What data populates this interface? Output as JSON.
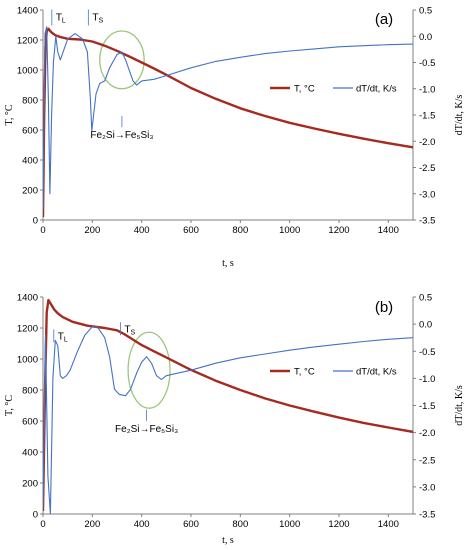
{
  "chart_data": [
    {
      "type": "line",
      "panel_label": "(a)",
      "xlabel": "t, s",
      "ylabel_left": "T, °C",
      "ylabel_right": "dT/dt, K/s",
      "xlim": [
        0,
        1500
      ],
      "ylim_left": [
        0,
        1400
      ],
      "ylim_right": [
        -3.5,
        0.5
      ],
      "x_ticks": [
        "0",
        "200",
        "400",
        "600",
        "800",
        "1000",
        "1200",
        "1400"
      ],
      "y_ticks_left": [
        "0",
        "200",
        "400",
        "600",
        "800",
        "1000",
        "1200",
        "1400"
      ],
      "y_ticks_right": [
        "-3.5",
        "-3.0",
        "-2.5",
        "-2.0",
        "-1.5",
        "-1.0",
        "-0.5",
        "0.0",
        "0.5"
      ],
      "colors": {
        "temperature": "#a52a1f",
        "rate": "#4472c4",
        "ellipse": "#9bc77a"
      },
      "legend_position": "right",
      "series": [
        {
          "name": "T, °C",
          "axis": "left",
          "points": [
            [
              0,
              20
            ],
            [
              5,
              700
            ],
            [
              10,
              1150
            ],
            [
              15,
              1255
            ],
            [
              22,
              1275
            ],
            [
              35,
              1250
            ],
            [
              50,
              1232
            ],
            [
              70,
              1220
            ],
            [
              100,
              1208
            ],
            [
              150,
              1203
            ],
            [
              200,
              1190
            ],
            [
              250,
              1162
            ],
            [
              300,
              1128
            ],
            [
              350,
              1090
            ],
            [
              400,
              1050
            ],
            [
              450,
              1010
            ],
            [
              500,
              968
            ],
            [
              600,
              880
            ],
            [
              700,
              808
            ],
            [
              800,
              745
            ],
            [
              900,
              693
            ],
            [
              1000,
              648
            ],
            [
              1100,
              610
            ],
            [
              1200,
              575
            ],
            [
              1300,
              542
            ],
            [
              1400,
              512
            ],
            [
              1500,
              485
            ]
          ]
        },
        {
          "name": "dT/dt, K/s",
          "axis": "right",
          "points": [
            [
              0,
              -3.3
            ],
            [
              8,
              0.05
            ],
            [
              15,
              0.18
            ],
            [
              22,
              -1.2
            ],
            [
              28,
              -3.0
            ],
            [
              35,
              -1.5
            ],
            [
              42,
              -0.5
            ],
            [
              52,
              0.0
            ],
            [
              60,
              -0.3
            ],
            [
              70,
              -0.45
            ],
            [
              85,
              -0.25
            ],
            [
              100,
              -0.05
            ],
            [
              130,
              0.05
            ],
            [
              160,
              -0.05
            ],
            [
              180,
              -0.3
            ],
            [
              192,
              -1.2
            ],
            [
              198,
              -1.8
            ],
            [
              205,
              -1.5
            ],
            [
              215,
              -1.1
            ],
            [
              230,
              -0.9
            ],
            [
              250,
              -0.85
            ],
            [
              270,
              -0.6
            ],
            [
              300,
              -0.35
            ],
            [
              320,
              -0.3
            ],
            [
              335,
              -0.45
            ],
            [
              350,
              -0.65
            ],
            [
              365,
              -0.85
            ],
            [
              380,
              -0.93
            ],
            [
              400,
              -0.85
            ],
            [
              450,
              -0.82
            ],
            [
              500,
              -0.75
            ],
            [
              600,
              -0.6
            ],
            [
              700,
              -0.48
            ],
            [
              800,
              -0.4
            ],
            [
              900,
              -0.33
            ],
            [
              1000,
              -0.28
            ],
            [
              1100,
              -0.24
            ],
            [
              1200,
              -0.2
            ],
            [
              1300,
              -0.18
            ],
            [
              1400,
              -0.16
            ],
            [
              1500,
              -0.15
            ]
          ]
        }
      ],
      "annotations": [
        {
          "text_main": "T",
          "text_sub": "L",
          "x": 52,
          "axis": "right",
          "y": 0.3
        },
        {
          "text_main": "T",
          "text_sub": "S",
          "x": 200,
          "axis": "right",
          "y": 0.3
        },
        {
          "text": "Fe₂Si→Fe₅Si₃",
          "x": 320,
          "axis": "right",
          "y": -1.75
        }
      ],
      "ellipse": {
        "cx": 320,
        "cy_right": -0.45,
        "rx": 90,
        "ry_right": 0.55
      }
    },
    {
      "type": "line",
      "panel_label": "(b)",
      "xlabel": "t, s",
      "ylabel_left": "T, °C",
      "ylabel_right": "dT/dt, K/s",
      "xlim": [
        0,
        1500
      ],
      "ylim_left": [
        0,
        1400
      ],
      "ylim_right": [
        -3.5,
        0.5
      ],
      "x_ticks": [
        "0",
        "200",
        "400",
        "600",
        "800",
        "1000",
        "1200",
        "1400"
      ],
      "y_ticks_left": [
        "0",
        "200",
        "400",
        "600",
        "800",
        "1000",
        "1200",
        "1400"
      ],
      "y_ticks_right": [
        "-3.5",
        "-3.0",
        "-2.5",
        "-2.0",
        "-1.5",
        "-1.0",
        "-0.5",
        "0.0",
        "0.5"
      ],
      "colors": {
        "temperature": "#a52a1f",
        "rate": "#4472c4",
        "ellipse": "#9bc77a"
      },
      "legend_position": "right",
      "series": [
        {
          "name": "T, °C",
          "axis": "left",
          "points": [
            [
              0,
              20
            ],
            [
              8,
              800
            ],
            [
              15,
              1300
            ],
            [
              22,
              1380
            ],
            [
              30,
              1360
            ],
            [
              45,
              1320
            ],
            [
              60,
              1295
            ],
            [
              80,
              1270
            ],
            [
              120,
              1240
            ],
            [
              180,
              1215
            ],
            [
              250,
              1200
            ],
            [
              300,
              1185
            ],
            [
              330,
              1160
            ],
            [
              360,
              1130
            ],
            [
              400,
              1090
            ],
            [
              450,
              1050
            ],
            [
              500,
              1010
            ],
            [
              600,
              930
            ],
            [
              700,
              860
            ],
            [
              800,
              800
            ],
            [
              900,
              746
            ],
            [
              1000,
              700
            ],
            [
              1100,
              660
            ],
            [
              1200,
              622
            ],
            [
              1300,
              588
            ],
            [
              1400,
              558
            ],
            [
              1500,
              530
            ]
          ]
        },
        {
          "name": "dT/dt, K/s",
          "axis": "right",
          "points": [
            [
              0,
              -3.4
            ],
            [
              10,
              -0.2
            ],
            [
              20,
              -2.8
            ],
            [
              30,
              -3.5
            ],
            [
              40,
              -1.0
            ],
            [
              50,
              -0.3
            ],
            [
              60,
              -0.4
            ],
            [
              70,
              -0.95
            ],
            [
              80,
              -1.0
            ],
            [
              95,
              -0.95
            ],
            [
              110,
              -0.85
            ],
            [
              140,
              -0.5
            ],
            [
              170,
              -0.2
            ],
            [
              200,
              -0.05
            ],
            [
              220,
              -0.05
            ],
            [
              250,
              -0.25
            ],
            [
              270,
              -0.6
            ],
            [
              290,
              -1.2
            ],
            [
              310,
              -1.3
            ],
            [
              335,
              -1.32
            ],
            [
              355,
              -1.2
            ],
            [
              380,
              -0.9
            ],
            [
              400,
              -0.7
            ],
            [
              420,
              -0.6
            ],
            [
              440,
              -0.72
            ],
            [
              460,
              -0.95
            ],
            [
              480,
              -1.02
            ],
            [
              500,
              -0.95
            ],
            [
              600,
              -0.85
            ],
            [
              700,
              -0.72
            ],
            [
              800,
              -0.62
            ],
            [
              900,
              -0.55
            ],
            [
              1000,
              -0.48
            ],
            [
              1100,
              -0.42
            ],
            [
              1200,
              -0.37
            ],
            [
              1300,
              -0.32
            ],
            [
              1400,
              -0.28
            ],
            [
              1500,
              -0.25
            ]
          ]
        }
      ],
      "annotations": [
        {
          "text_main": "T",
          "text_sub": "L",
          "x": 60,
          "axis": "right",
          "y": -0.28
        },
        {
          "text_main": "T",
          "text_sub": "S",
          "x": 330,
          "axis": "right",
          "y": -0.15
        },
        {
          "text": "Fe₂Si→Fe₅Si₃",
          "x": 420,
          "axis": "right",
          "y": -1.8
        }
      ],
      "ellipse": {
        "cx": 430,
        "cy_right": -0.85,
        "rx": 85,
        "ry_right": 0.7
      }
    }
  ]
}
